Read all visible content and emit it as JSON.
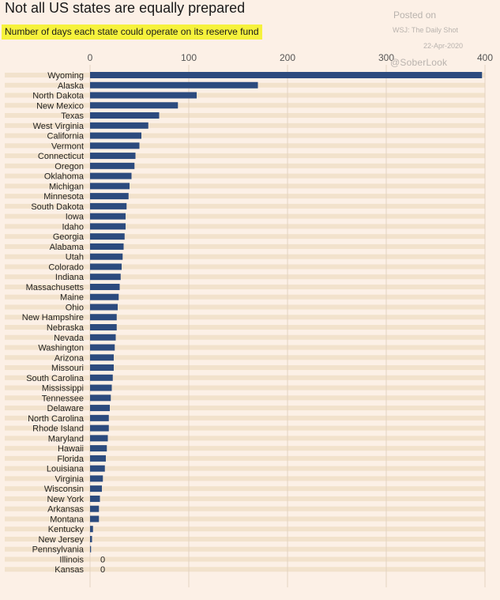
{
  "title": "Not all US states are equally prepared",
  "subtitle": "Number of days each state could operate on its reserve fund",
  "watermark": {
    "posted": "Posted on",
    "source": "WSJ: The Daily Shot",
    "date": "22-Apr-2020",
    "handle": "@SoberLook"
  },
  "colors": {
    "bar": "#2c4b7e",
    "background": "#fcf0e6",
    "band": "#f2e2cc",
    "highlight": "#f6f23c"
  },
  "chart_data": {
    "type": "bar",
    "orientation": "horizontal",
    "title": "Not all US states are equally prepared",
    "subtitle": "Number of days each state could operate on its reserve fund",
    "xlim": [
      0,
      400
    ],
    "xticks": [
      0,
      100,
      200,
      300,
      400
    ],
    "grid": true,
    "categories": [
      "Wyoming",
      "Alaska",
      "North Dakota",
      "New Mexico",
      "Texas",
      "West Virginia",
      "California",
      "Vermont",
      "Connecticut",
      "Oregon",
      "Oklahoma",
      "Michigan",
      "Minnesota",
      "South Dakota",
      "Iowa",
      "Idaho",
      "Georgia",
      "Alabama",
      "Utah",
      "Colorado",
      "Indiana",
      "Massachusetts",
      "Maine",
      "Ohio",
      "New Hampshire",
      "Nebraska",
      "Nevada",
      "Washington",
      "Arizona",
      "Missouri",
      "South Carolina",
      "Mississippi",
      "Tennessee",
      "Delaware",
      "North Carolina",
      "Rhode Island",
      "Maryland",
      "Hawaii",
      "Florida",
      "Louisiana",
      "Virginia",
      "Wisconsin",
      "New York",
      "Arkansas",
      "Montana",
      "Kentucky",
      "New Jersey",
      "Pennsylvania",
      "Illinois",
      "Kansas"
    ],
    "values": [
      397,
      170,
      108,
      89,
      70,
      59,
      52,
      50,
      46,
      45,
      42,
      40,
      39,
      37,
      36,
      36,
      35,
      34,
      33,
      32,
      31,
      30,
      29,
      28,
      27,
      27,
      26,
      25,
      24,
      24,
      23,
      22,
      21,
      20,
      19,
      19,
      18,
      17,
      16,
      15,
      13,
      12,
      10,
      9,
      9,
      3,
      2,
      1,
      0,
      0
    ],
    "value_labels": [
      {
        "category": "Illinois",
        "text": "0"
      },
      {
        "category": "Kansas",
        "text": "0"
      }
    ]
  }
}
